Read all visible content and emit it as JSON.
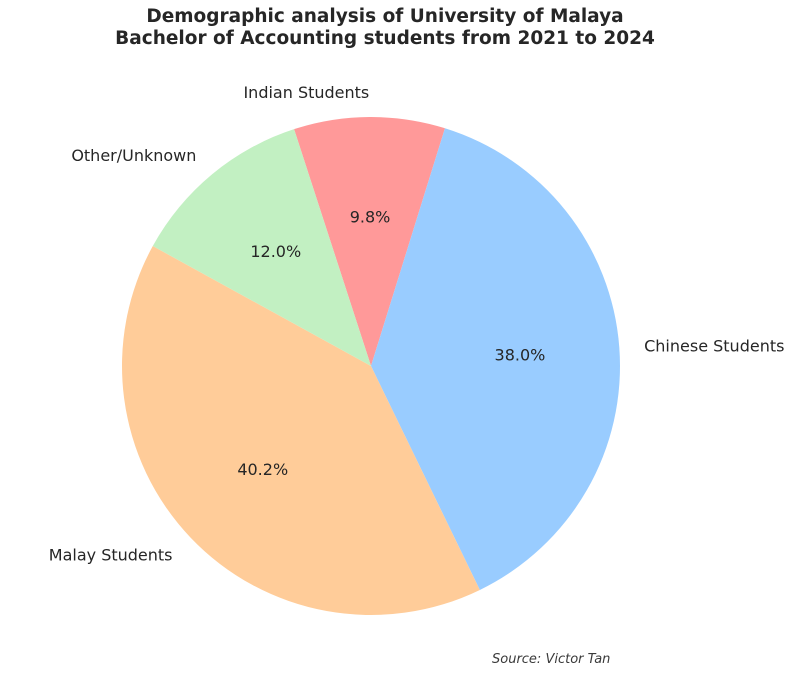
{
  "chart_data": {
    "type": "pie",
    "title_lines": [
      "Demographic analysis of University of Malaya",
      "Bachelor of Accounting students from 2021 to 2024"
    ],
    "slices": [
      {
        "label": "Indian Students",
        "value": 9.8,
        "pct_text": "9.8%",
        "color": "#ff9999"
      },
      {
        "label": "Chinese Students",
        "value": 38.0,
        "pct_text": "38.0%",
        "color": "#99ccff"
      },
      {
        "label": "Malay Students",
        "value": 40.2,
        "pct_text": "40.2%",
        "color": "#ffcc99"
      },
      {
        "label": "Other/Unknown",
        "value": 12.0,
        "pct_text": "12.0%",
        "color": "#c2f0c2"
      }
    ],
    "source": "Source: Victor Tan"
  }
}
